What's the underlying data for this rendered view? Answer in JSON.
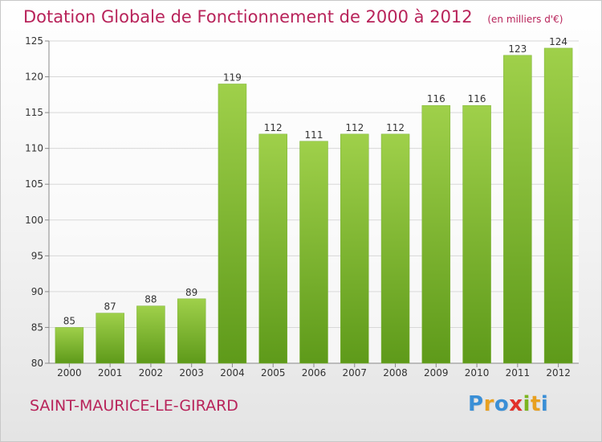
{
  "header": {
    "title": "Dotation Globale de Fonctionnement de 2000 à 2012",
    "subtitle": "(en milliers d'€)"
  },
  "footer": {
    "commune": "SAINT-MAURICE-LE-GIRARD",
    "logo_text": "Proxiti",
    "logo_letters": [
      {
        "ch": "P",
        "color": "#3a8fd6"
      },
      {
        "ch": "r",
        "color": "#e8a020"
      },
      {
        "ch": "o",
        "color": "#3a8fd6"
      },
      {
        "ch": "x",
        "color": "#e2312a"
      },
      {
        "ch": "i",
        "color": "#7cb51f"
      },
      {
        "ch": "t",
        "color": "#e8a020"
      },
      {
        "ch": "i",
        "color": "#3a8fd6"
      }
    ]
  },
  "colors": {
    "title": "#b8235a",
    "bar_top": "#9fd04a",
    "bar_bottom": "#5e9a1a",
    "grid": "#d8d8d8"
  },
  "chart_data": {
    "type": "bar",
    "categories": [
      "2000",
      "2001",
      "2002",
      "2003",
      "2004",
      "2005",
      "2006",
      "2007",
      "2008",
      "2009",
      "2010",
      "2011",
      "2012"
    ],
    "values": [
      85,
      87,
      88,
      89,
      119,
      112,
      111,
      112,
      112,
      116,
      116,
      123,
      124
    ],
    "ylim": [
      80,
      125
    ],
    "yticks": [
      80,
      85,
      90,
      95,
      100,
      105,
      110,
      115,
      120,
      125
    ],
    "grid": true,
    "data_labels": true
  }
}
